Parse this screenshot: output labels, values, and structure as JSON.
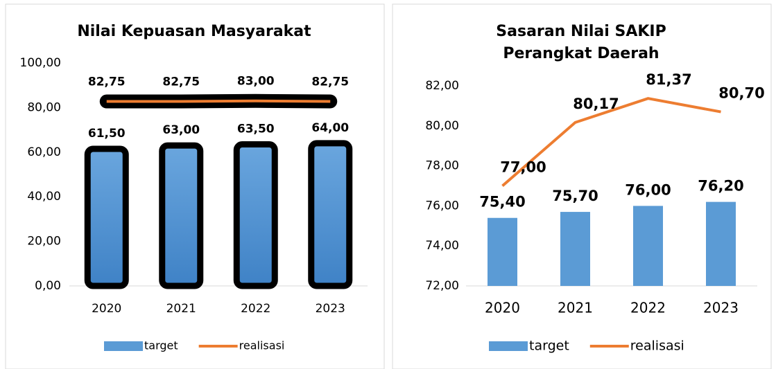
{
  "chart_data": [
    {
      "type": "combo",
      "title": [
        "Nilai Kepuasan Masyarakat"
      ],
      "categories": [
        "2020",
        "2021",
        "2022",
        "2023"
      ],
      "ylim": [
        0,
        100
      ],
      "yticks": [
        {
          "value": 0,
          "label": "0,00"
        },
        {
          "value": 20,
          "label": "20,00"
        },
        {
          "value": 40,
          "label": "40,00"
        },
        {
          "value": 60,
          "label": "60,00"
        },
        {
          "value": 80,
          "label": "80,00"
        },
        {
          "value": 100,
          "label": "100,00"
        }
      ],
      "legend": "bottom",
      "outline": true,
      "series": [
        {
          "name": "target",
          "kind": "bar",
          "color": "#5b9bd5",
          "values": [
            61.5,
            63,
            63.5,
            64
          ],
          "value_labels": [
            "61,50",
            "63,00",
            "63,50",
            "64,00"
          ]
        },
        {
          "name": "realisasi",
          "kind": "line",
          "color": "#ed7d31",
          "values": [
            82.75,
            82.75,
            83,
            82.75
          ],
          "value_labels": [
            "82,75",
            "82,75",
            "83,00",
            "82,75"
          ]
        }
      ]
    },
    {
      "type": "combo",
      "title": [
        "Sasaran Nilai SAKIP",
        "Perangkat Daerah"
      ],
      "categories": [
        "2020",
        "2021",
        "2022",
        "2023"
      ],
      "ylim": [
        72,
        82
      ],
      "yticks": [
        {
          "value": 72,
          "label": "72,00"
        },
        {
          "value": 74,
          "label": "74,00"
        },
        {
          "value": 76,
          "label": "76,00"
        },
        {
          "value": 78,
          "label": "78,00"
        },
        {
          "value": 80,
          "label": "80,00"
        },
        {
          "value": 82,
          "label": "82,00"
        }
      ],
      "legend": "bottom",
      "outline": false,
      "series": [
        {
          "name": "target",
          "kind": "bar",
          "color": "#5b9bd5",
          "values": [
            75.4,
            75.7,
            76,
            76.2
          ],
          "value_labels": [
            "75,40",
            "75,70",
            "76,00",
            "76,20"
          ]
        },
        {
          "name": "realisasi",
          "kind": "line",
          "color": "#ed7d31",
          "values": [
            77,
            80.17,
            81.37,
            80.7
          ],
          "value_labels": [
            "77,00",
            "80,17",
            "81,37",
            "80,70"
          ]
        }
      ]
    }
  ]
}
